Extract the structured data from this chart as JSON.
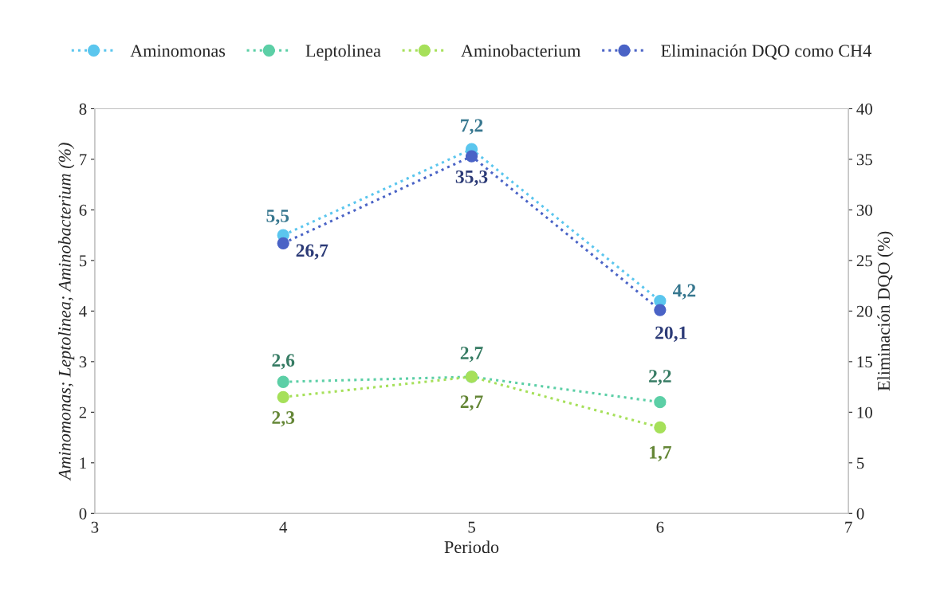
{
  "chart_data": {
    "type": "line",
    "xlabel": "Periodo",
    "ylabel": "Aminomonas; Leptolinea; Aminobacterium (%)",
    "y2label": "Eliminación DQO (%)",
    "x": [
      4,
      5,
      6
    ],
    "xlim": [
      3,
      7
    ],
    "xticks": [
      3,
      4,
      5,
      6,
      7
    ],
    "ylim": [
      0,
      8
    ],
    "yticks": [
      0,
      1,
      2,
      3,
      4,
      5,
      6,
      7,
      8
    ],
    "y2lim": [
      0,
      40
    ],
    "y2ticks": [
      0,
      5,
      10,
      15,
      20,
      25,
      30,
      35,
      40
    ],
    "grid": false,
    "legend": "top",
    "marker": "circle",
    "line_style": "dotted",
    "series": [
      {
        "name": "Aminomonas",
        "color": "#5bc6ee",
        "values": [
          5.5,
          7.2,
          4.2
        ],
        "value_labels": [
          "5,5",
          "7,2",
          "4,2"
        ]
      },
      {
        "name": "Leptolinea",
        "color": "#5ccfa6",
        "values": [
          2.6,
          2.7,
          2.2
        ],
        "value_labels": [
          "2,6",
          "2,7",
          "2,2"
        ]
      },
      {
        "name": "Aminobacterium",
        "color": "#a6e05a",
        "values": [
          2.3,
          2.7,
          1.7
        ],
        "value_labels": [
          "2,3",
          "2,7",
          "1,7"
        ]
      },
      {
        "name": "Eliminación DQO como CH4",
        "color": "#4a63c6",
        "axis": "y2",
        "values": [
          26.7,
          35.3,
          20.1
        ],
        "value_labels": [
          "26,7",
          "35,3",
          "20,1"
        ]
      }
    ]
  }
}
